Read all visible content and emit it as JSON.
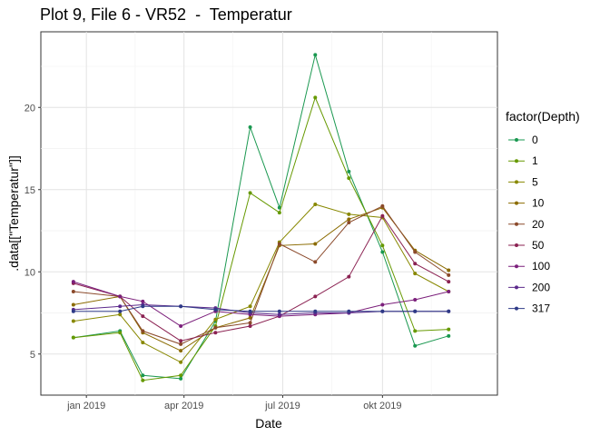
{
  "chart_data": {
    "type": "line",
    "title": "Plot 9, File 6 - VR52  -  Temperatur",
    "xlabel": "Date",
    "ylabel": ".data[[\"Temperatur\"]]",
    "legend_title": "factor(Depth)",
    "legend_position": "right",
    "grid": true,
    "x_ticks": [
      {
        "label": "jan 2019",
        "date": "2019-01-01"
      },
      {
        "label": "apr 2019",
        "date": "2019-04-01"
      },
      {
        "label": "jul 2019",
        "date": "2019-07-01"
      },
      {
        "label": "okt 2019",
        "date": "2019-10-01"
      }
    ],
    "xlim": [
      "2018-11-20",
      "2020-01-15"
    ],
    "y_ticks": [
      5,
      10,
      15,
      20
    ],
    "ylim": [
      2.5,
      24.6
    ],
    "x": [
      "2018-12-20",
      "2019-02-01",
      "2019-02-22",
      "2019-03-29",
      "2019-04-30",
      "2019-06-01",
      "2019-06-28",
      "2019-07-31",
      "2019-08-31",
      "2019-10-01",
      "2019-10-31",
      "2019-12-01"
    ],
    "series": [
      {
        "name": "0",
        "color": "#1a9850",
        "values": [
          6.0,
          6.4,
          3.7,
          3.5,
          7.0,
          18.8,
          13.9,
          23.2,
          16.1,
          11.2,
          5.5,
          6.1
        ]
      },
      {
        "name": "1",
        "color": "#669900",
        "values": [
          6.0,
          6.3,
          3.4,
          3.7,
          6.7,
          14.8,
          13.6,
          20.6,
          15.7,
          11.6,
          6.4,
          6.5
        ]
      },
      {
        "name": "5",
        "color": "#888800",
        "values": [
          7.0,
          7.4,
          5.7,
          4.5,
          7.1,
          7.9,
          11.8,
          14.1,
          13.5,
          13.3,
          9.9,
          8.8
        ]
      },
      {
        "name": "10",
        "color": "#8b6b00",
        "values": [
          8.0,
          8.5,
          6.3,
          5.2,
          6.6,
          7.2,
          11.6,
          11.7,
          13.2,
          13.9,
          11.3,
          10.1
        ]
      },
      {
        "name": "20",
        "color": "#8b4a2b",
        "values": [
          8.8,
          8.5,
          6.4,
          5.6,
          6.6,
          6.9,
          11.7,
          10.6,
          13.0,
          14.0,
          11.2,
          9.8
        ]
      },
      {
        "name": "50",
        "color": "#8b2252",
        "values": [
          9.3,
          8.5,
          7.3,
          5.8,
          6.3,
          6.7,
          7.3,
          8.5,
          9.7,
          13.4,
          10.5,
          9.4
        ]
      },
      {
        "name": "100",
        "color": "#7b1f7b",
        "values": [
          9.4,
          8.5,
          8.2,
          6.7,
          7.6,
          7.4,
          7.3,
          7.4,
          7.5,
          8.0,
          8.3,
          8.8
        ]
      },
      {
        "name": "200",
        "color": "#5c2a8c",
        "values": [
          7.7,
          7.9,
          8.0,
          7.9,
          7.8,
          7.5,
          7.4,
          7.5,
          7.5,
          7.6,
          7.6,
          7.6
        ]
      },
      {
        "name": "317",
        "color": "#2e3a87",
        "values": [
          7.6,
          7.6,
          7.9,
          7.9,
          7.7,
          7.6,
          7.6,
          7.6,
          7.6,
          7.6,
          7.6,
          7.6
        ]
      }
    ]
  }
}
